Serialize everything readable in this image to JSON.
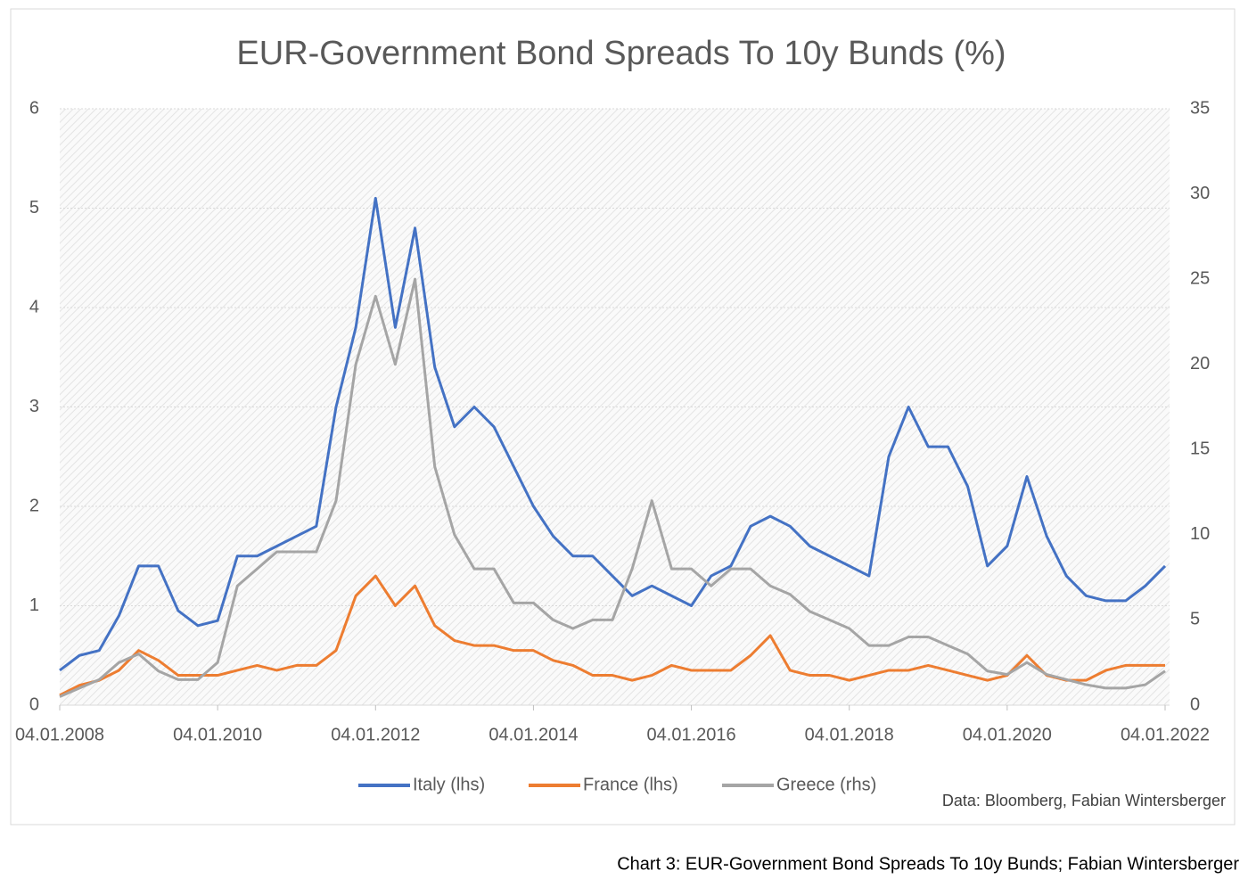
{
  "chart_data": {
    "type": "line",
    "title": "EUR-Government Bond Spreads To 10y Bunds (%)",
    "source": "Data: Bloomberg, Fabian Wintersberger",
    "x": [
      "04.01.2008",
      "04.04.2008",
      "04.07.2008",
      "04.10.2008",
      "04.01.2009",
      "04.04.2009",
      "04.07.2009",
      "04.10.2009",
      "04.01.2010",
      "04.04.2010",
      "04.07.2010",
      "04.10.2010",
      "04.01.2011",
      "04.04.2011",
      "04.07.2011",
      "04.10.2011",
      "04.01.2012",
      "04.04.2012",
      "04.07.2012",
      "04.10.2012",
      "04.01.2013",
      "04.04.2013",
      "04.07.2013",
      "04.10.2013",
      "04.01.2014",
      "04.04.2014",
      "04.07.2014",
      "04.10.2014",
      "04.01.2015",
      "04.04.2015",
      "04.07.2015",
      "04.10.2015",
      "04.01.2016",
      "04.04.2016",
      "04.07.2016",
      "04.10.2016",
      "04.01.2017",
      "04.04.2017",
      "04.07.2017",
      "04.10.2017",
      "04.01.2018",
      "04.04.2018",
      "04.07.2018",
      "04.10.2018",
      "04.01.2019",
      "04.04.2019",
      "04.07.2019",
      "04.10.2019",
      "04.01.2020",
      "04.04.2020",
      "04.07.2020",
      "04.10.2020",
      "04.01.2021",
      "04.04.2021",
      "04.07.2021",
      "04.10.2021",
      "04.01.2022"
    ],
    "series": [
      {
        "name": "Italy (lhs)",
        "color": "#4472c4",
        "values": [
          0.35,
          0.5,
          0.55,
          0.9,
          1.4,
          1.4,
          0.95,
          0.8,
          0.85,
          1.5,
          1.5,
          1.6,
          1.7,
          1.8,
          3.0,
          3.8,
          5.1,
          3.8,
          4.8,
          3.4,
          2.8,
          3.0,
          2.8,
          2.4,
          2.0,
          1.7,
          1.5,
          1.5,
          1.3,
          1.1,
          1.2,
          1.1,
          1.0,
          1.3,
          1.4,
          1.8,
          1.9,
          1.8,
          1.6,
          1.5,
          1.4,
          1.3,
          2.5,
          3.0,
          2.6,
          2.6,
          2.2,
          1.4,
          1.6,
          2.3,
          1.7,
          1.3,
          1.1,
          1.05,
          1.05,
          1.2,
          1.4
        ]
      },
      {
        "name": "France (lhs)",
        "color": "#ed7d31",
        "values": [
          0.1,
          0.2,
          0.25,
          0.35,
          0.55,
          0.45,
          0.3,
          0.3,
          0.3,
          0.35,
          0.4,
          0.35,
          0.4,
          0.4,
          0.55,
          1.1,
          1.3,
          1.0,
          1.2,
          0.8,
          0.65,
          0.6,
          0.6,
          0.55,
          0.55,
          0.45,
          0.4,
          0.3,
          0.3,
          0.25,
          0.3,
          0.4,
          0.35,
          0.35,
          0.35,
          0.5,
          0.7,
          0.35,
          0.3,
          0.3,
          0.25,
          0.3,
          0.35,
          0.35,
          0.4,
          0.35,
          0.3,
          0.25,
          0.3,
          0.5,
          0.3,
          0.25,
          0.25,
          0.35,
          0.4,
          0.4,
          0.4
        ]
      },
      {
        "name": "Greece (rhs)",
        "color": "#a5a5a5",
        "axis": "y2",
        "values": [
          0.5,
          1,
          1.5,
          2.5,
          3,
          2,
          1.5,
          1.5,
          2.5,
          7,
          8,
          9,
          9,
          9,
          12,
          20,
          24,
          20,
          25,
          14,
          10,
          8,
          8,
          6,
          6,
          5,
          4.5,
          5,
          5,
          8,
          12,
          8,
          8,
          7,
          8,
          8,
          7,
          6.5,
          5.5,
          5,
          4.5,
          3.5,
          3.5,
          4,
          4,
          3.5,
          3,
          2,
          1.8,
          2.5,
          1.8,
          1.5,
          1.2,
          1.0,
          1.0,
          1.2,
          2.0
        ]
      }
    ],
    "xlim": [
      "04.01.2008",
      "04.01.2022"
    ],
    "xticks": [
      "04.01.2008",
      "04.01.2010",
      "04.01.2012",
      "04.01.2014",
      "04.01.2016",
      "04.01.2018",
      "04.01.2020",
      "04.01.2022"
    ],
    "ylim": [
      0,
      6
    ],
    "yticks": [
      0,
      1,
      2,
      3,
      4,
      5,
      6
    ],
    "y2lim": [
      0,
      35
    ],
    "y2ticks": [
      0,
      5,
      10,
      15,
      20,
      25,
      30,
      35
    ],
    "grid": true
  },
  "caption": "Chart 3: EUR-Government Bond Spreads To 10y Bunds; Fabian Wintersberger"
}
